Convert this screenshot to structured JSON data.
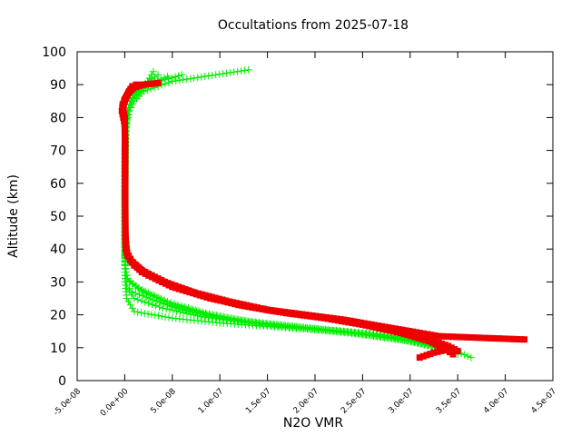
{
  "chart_data": {
    "type": "scatter",
    "title": "Occultations from 2025-07-18",
    "xlabel": "N2O VMR",
    "ylabel": "Altitude (km)",
    "xlim": [
      -5e-08,
      4.5e-07
    ],
    "ylim": [
      0,
      100
    ],
    "x_ticks": [
      -5e-08,
      0,
      5e-08,
      1e-07,
      1.5e-07,
      2e-07,
      2.5e-07,
      3e-07,
      3.5e-07,
      4e-07,
      4.5e-07
    ],
    "x_tick_labels": [
      "-5.0e-08",
      "0.0e+00",
      "5.0e-08",
      "1.0e-07",
      "1.5e-07",
      "2.0e-07",
      "2.5e-07",
      "3.0e-07",
      "3.5e-07",
      "4.0e-07",
      "4.5e-07"
    ],
    "y_ticks": [
      0,
      10,
      20,
      30,
      40,
      50,
      60,
      70,
      80,
      90,
      100
    ],
    "y_tick_labels": [
      "0",
      "10",
      "20",
      "30",
      "40",
      "50",
      "60",
      "70",
      "80",
      "90",
      "100"
    ],
    "grid": false,
    "colors": {
      "green": "#00ee00",
      "red": "#ee0000",
      "axes": "#000000"
    },
    "series": [
      {
        "color": "#00ee00",
        "marker": "plus",
        "profiles": [
          {
            "x": [
              3.64e-07,
              3.4e-07,
              3e-07,
              2.5e-07,
              2e-07,
              1.5e-07,
              1e-07,
              5e-08,
              1e-08,
              2e-09,
              5e-10,
              3e-10,
              2e-10,
              2e-10,
              2e-10,
              5e-10,
              2e-09,
              5e-09,
              1e-08,
              2e-08,
              5e-08,
              1.3e-07
            ],
            "y": [
              7,
              10,
              13,
              14.5,
              15.5,
              16.5,
              17.5,
              19,
              21,
              25,
              30,
              35,
              40,
              50,
              60,
              70,
              78,
              82,
              85,
              88,
              91,
              94.5
            ]
          },
          {
            "x": [
              3.5e-07,
              3.2e-07,
              2.8e-07,
              2.3e-07,
              1.8e-07,
              1.3e-07,
              8e-08,
              4e-08,
              1e-08,
              2e-09,
              3e-10,
              2e-10,
              2e-10,
              3e-10,
              1e-09,
              4e-09,
              1e-08,
              2.5e-08,
              6e-08
            ],
            "y": [
              8,
              11,
              13.5,
              15,
              16,
              17.5,
              19.5,
              22,
              25,
              28,
              33,
              40,
              55,
              70,
              79,
              83,
              87,
              90,
              93
            ]
          },
          {
            "x": [
              3.4e-07,
              3e-07,
              2.5e-07,
              2e-07,
              1.5e-07,
              1e-07,
              6e-08,
              3e-08,
              8e-09,
              2e-09,
              3e-10,
              2e-10,
              2e-10,
              5e-10,
              2e-09,
              6e-09,
              1.5e-08,
              3.5e-08
            ],
            "y": [
              9,
              12,
              14,
              15.5,
              17,
              19,
              21.5,
              24.5,
              27,
              29,
              34,
              42,
              60,
              75,
              81,
              85,
              89,
              93
            ]
          },
          {
            "x": [
              3.3e-07,
              2.9e-07,
              2.4e-07,
              1.9e-07,
              1.4e-07,
              9e-08,
              5e-08,
              2e-08,
              5e-09,
              1e-09,
              3e-10,
              2e-10,
              2e-10,
              8e-10,
              3e-09,
              8e-09,
              2e-08,
              4.5e-08
            ],
            "y": [
              10,
              12.5,
              14.5,
              16,
              17.5,
              20,
              23,
              27,
              30,
              32,
              36,
              45,
              62,
              76,
              82,
              86,
              89.5,
              92.5
            ]
          },
          {
            "x": [
              3.2e-07,
              2.8e-07,
              2.3e-07,
              1.8e-07,
              1.3e-07,
              8.5e-08,
              4.5e-08,
              1.5e-08,
              3e-09,
              1e-09,
              3e-10,
              2e-10,
              2e-10,
              1e-09,
              4e-09,
              1e-08,
              2.2e-08,
              3e-08
            ],
            "y": [
              11,
              13,
              15,
              16.5,
              18,
              20.5,
              24,
              28,
              31,
              34,
              37,
              44,
              58,
              77,
              83,
              87,
              90,
              94
            ]
          }
        ]
      },
      {
        "color": "#ee0000",
        "marker": "square",
        "profiles": [
          {
            "x": [
              3.1e-07,
              3.25e-07,
              3.4e-07,
              3.1e-07,
              2.7e-07,
              2.3e-07,
              1.9e-07,
              1.5e-07,
              1.1e-07,
              7e-08,
              4e-08,
              1.8e-08,
              8e-09,
              3e-09,
              1e-09,
              6e-10,
              5e-10,
              5e-10,
              5e-10,
              0,
              -3e-09,
              -2e-09,
              1e-09,
              5e-09,
              1e-08,
              2e-08,
              3.5e-08
            ],
            "y": [
              7,
              8.5,
              9.5,
              13.5,
              16,
              18.5,
              20,
              21.5,
              24,
              27,
              30,
              33,
              36,
              38,
              40,
              44,
              50,
              60,
              70,
              78,
              82,
              84,
              86,
              88,
              89.5,
              90,
              90.5
            ]
          },
          {
            "x": [
              3.5e-07,
              3.4e-07,
              3.2e-07,
              2.8e-07,
              2.4e-07,
              2e-07,
              1.6e-07,
              1.2e-07,
              8e-08,
              4.5e-08,
              2e-08,
              8e-09,
              2e-09,
              6e-10,
              5e-10,
              5e-10,
              0,
              -2e-09,
              0,
              4e-09,
              9e-09,
              1.8e-08
            ],
            "y": [
              9,
              10.5,
              12.5,
              15.5,
              18,
              19.5,
              21,
              23,
              26,
              29.5,
              33,
              36,
              39,
              45,
              55,
              68,
              78,
              83,
              85.5,
              87.5,
              89,
              90
            ]
          },
          {
            "x": [
              3.45e-07,
              3.35e-07,
              3.2e-07,
              2.9e-07,
              2.5e-07,
              2.1e-07,
              1.7e-07,
              1.3e-07,
              9e-08,
              5e-08,
              2.5e-08,
              1e-08,
              3e-09,
              8e-10,
              5e-10,
              0,
              -2e-09,
              2e-09,
              6e-09,
              1.2e-08
            ],
            "y": [
              8,
              10,
              12,
              14.5,
              17,
              19,
              20.5,
              22.5,
              25,
              28.5,
              32,
              35,
              38,
              42,
              56,
              79,
              84,
              86.5,
              88.5,
              90
            ]
          },
          {
            "x": [
              4.2e-07,
              3.3e-07,
              3.1e-07,
              2.7e-07,
              2.3e-07,
              1.9e-07,
              1.5e-07,
              1.1e-07,
              7.5e-08,
              4.2e-08,
              1.8e-08,
              6e-09,
              2e-09,
              5e-10,
              5e-10,
              0,
              -2e-09,
              3e-09,
              8e-09
            ],
            "y": [
              12.5,
              13.5,
              14.5,
              16.5,
              18.5,
              20,
              21.5,
              24,
              26.5,
              30,
              33.5,
              36.5,
              39,
              44,
              60,
              80,
              83.5,
              87,
              89.5
            ]
          }
        ]
      }
    ]
  }
}
